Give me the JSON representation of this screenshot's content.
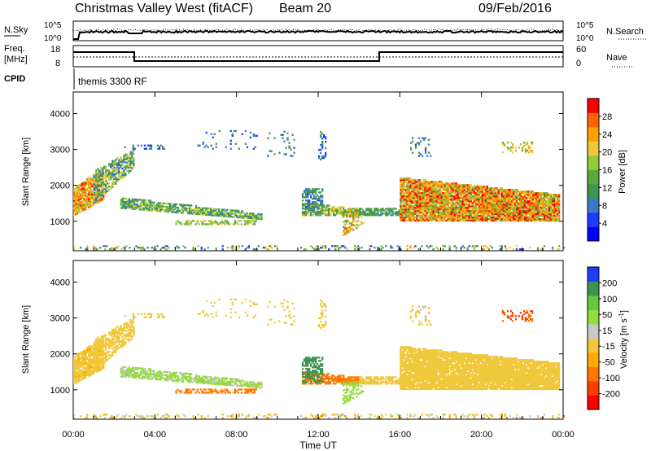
{
  "header": {
    "station": "Christmas Valley West (fitACF)",
    "beam": "Beam 20",
    "date": "09/Feb/2016"
  },
  "colors": {
    "power_scale": [
      "#0000ff",
      "#1e3cff",
      "#3c78c8",
      "#3c9650",
      "#5aaa3c",
      "#96c83c",
      "#f0c83c",
      "#ffa000",
      "#ff6400",
      "#ff0000"
    ],
    "velocity_scale": [
      "#ff0000",
      "#ff3c00",
      "#ff7800",
      "#ffaa00",
      "#f0c83c",
      "#c8c8c8",
      "#96dc3c",
      "#64c83c",
      "#3c9650",
      "#1e3cff"
    ]
  },
  "panels": {
    "nsky": {
      "label": "N.Sky",
      "right_label": "N.Search",
      "tick_hi": "10^5",
      "tick_lo": "10^0",
      "rtick_hi": "10^5",
      "rtick_lo": "10^0"
    },
    "freq": {
      "label_line1": "Freq.",
      "label_line2": "[MHz]",
      "ticks": [
        "18",
        "8"
      ],
      "right_label": "Nave",
      "rticks": [
        "60",
        "0"
      ]
    },
    "cpid": {
      "label": "CPID",
      "program": "themis 3300 RF"
    }
  },
  "chart_data": [
    {
      "type": "heatmap",
      "title": "",
      "quantity": "Power",
      "xlabel": "Time UT",
      "ylabel": "Slant Range [km]",
      "colorbar_label": "Power [dB]",
      "colorbar_ticks": [
        4,
        8,
        12,
        16,
        20,
        24,
        28
      ],
      "colorbar_range": [
        0,
        32
      ],
      "xlim": [
        0,
        24
      ],
      "ylim": [
        180,
        4600
      ],
      "yticks": [
        1000,
        2000,
        3000,
        4000
      ],
      "xticks": [
        "00:00",
        "04:00",
        "08:00",
        "12:00",
        "16:00",
        "20:00",
        "00:00"
      ],
      "grid": false
    },
    {
      "type": "heatmap",
      "title": "",
      "quantity": "Velocity",
      "xlabel": "Time UT",
      "ylabel": "Slant Range [km]",
      "colorbar_label": "Velocity [m s^-1]",
      "colorbar_ticks": [
        -200,
        -100,
        -50,
        -15,
        15,
        50,
        100,
        200
      ],
      "colorbar_range": [
        -250,
        250
      ],
      "xlim": [
        0,
        24
      ],
      "ylim": [
        180,
        4600
      ],
      "yticks": [
        1000,
        2000,
        3000,
        4000
      ],
      "xticks": [
        "00:00",
        "04:00",
        "08:00",
        "12:00",
        "16:00",
        "20:00",
        "00:00"
      ],
      "grid": false
    }
  ]
}
